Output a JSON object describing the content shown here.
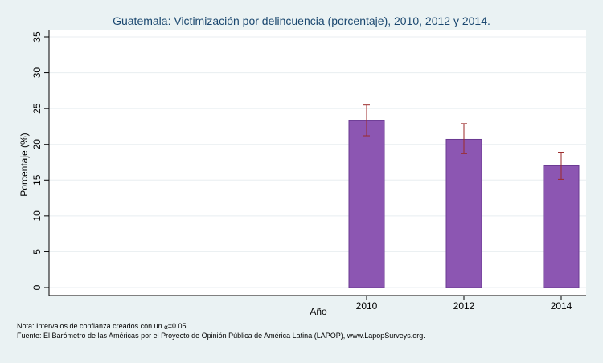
{
  "colors": {
    "background": "#eaf2f3",
    "plot_area": "#ffffff",
    "bar_fill": "#8c56b2",
    "bar_stroke": "#6a3a92",
    "error_bar": "#9b2a2a",
    "gridline": "#e8eef0",
    "title": "#1a476f"
  },
  "notes": {
    "line1_prefix": "Nota: Intervalos de confianza creados con un ",
    "line1_symbol": "α",
    "line1_suffix": "=0.05",
    "line2": "Fuente: El Barómetro de las Américas por el Proyecto de Opinión Pública de América Latina (LAPOP), www.LapopSurveys.org."
  },
  "chart_data": {
    "type": "bar",
    "title": "Guatemala: Victimización por delincuencia (porcentaje), 2010, 2012 y 2014.",
    "xlabel": "Año",
    "ylabel": "Porcentaje (%)",
    "ylim": [
      0,
      35
    ],
    "yticks": [
      0,
      5,
      10,
      15,
      20,
      25,
      30,
      35
    ],
    "grid": true,
    "categories": [
      "2010",
      "2012",
      "2014"
    ],
    "values": [
      23.3,
      20.7,
      17.0
    ],
    "ci_low": [
      21.2,
      18.7,
      15.1
    ],
    "ci_high": [
      25.5,
      22.9,
      18.9
    ]
  }
}
